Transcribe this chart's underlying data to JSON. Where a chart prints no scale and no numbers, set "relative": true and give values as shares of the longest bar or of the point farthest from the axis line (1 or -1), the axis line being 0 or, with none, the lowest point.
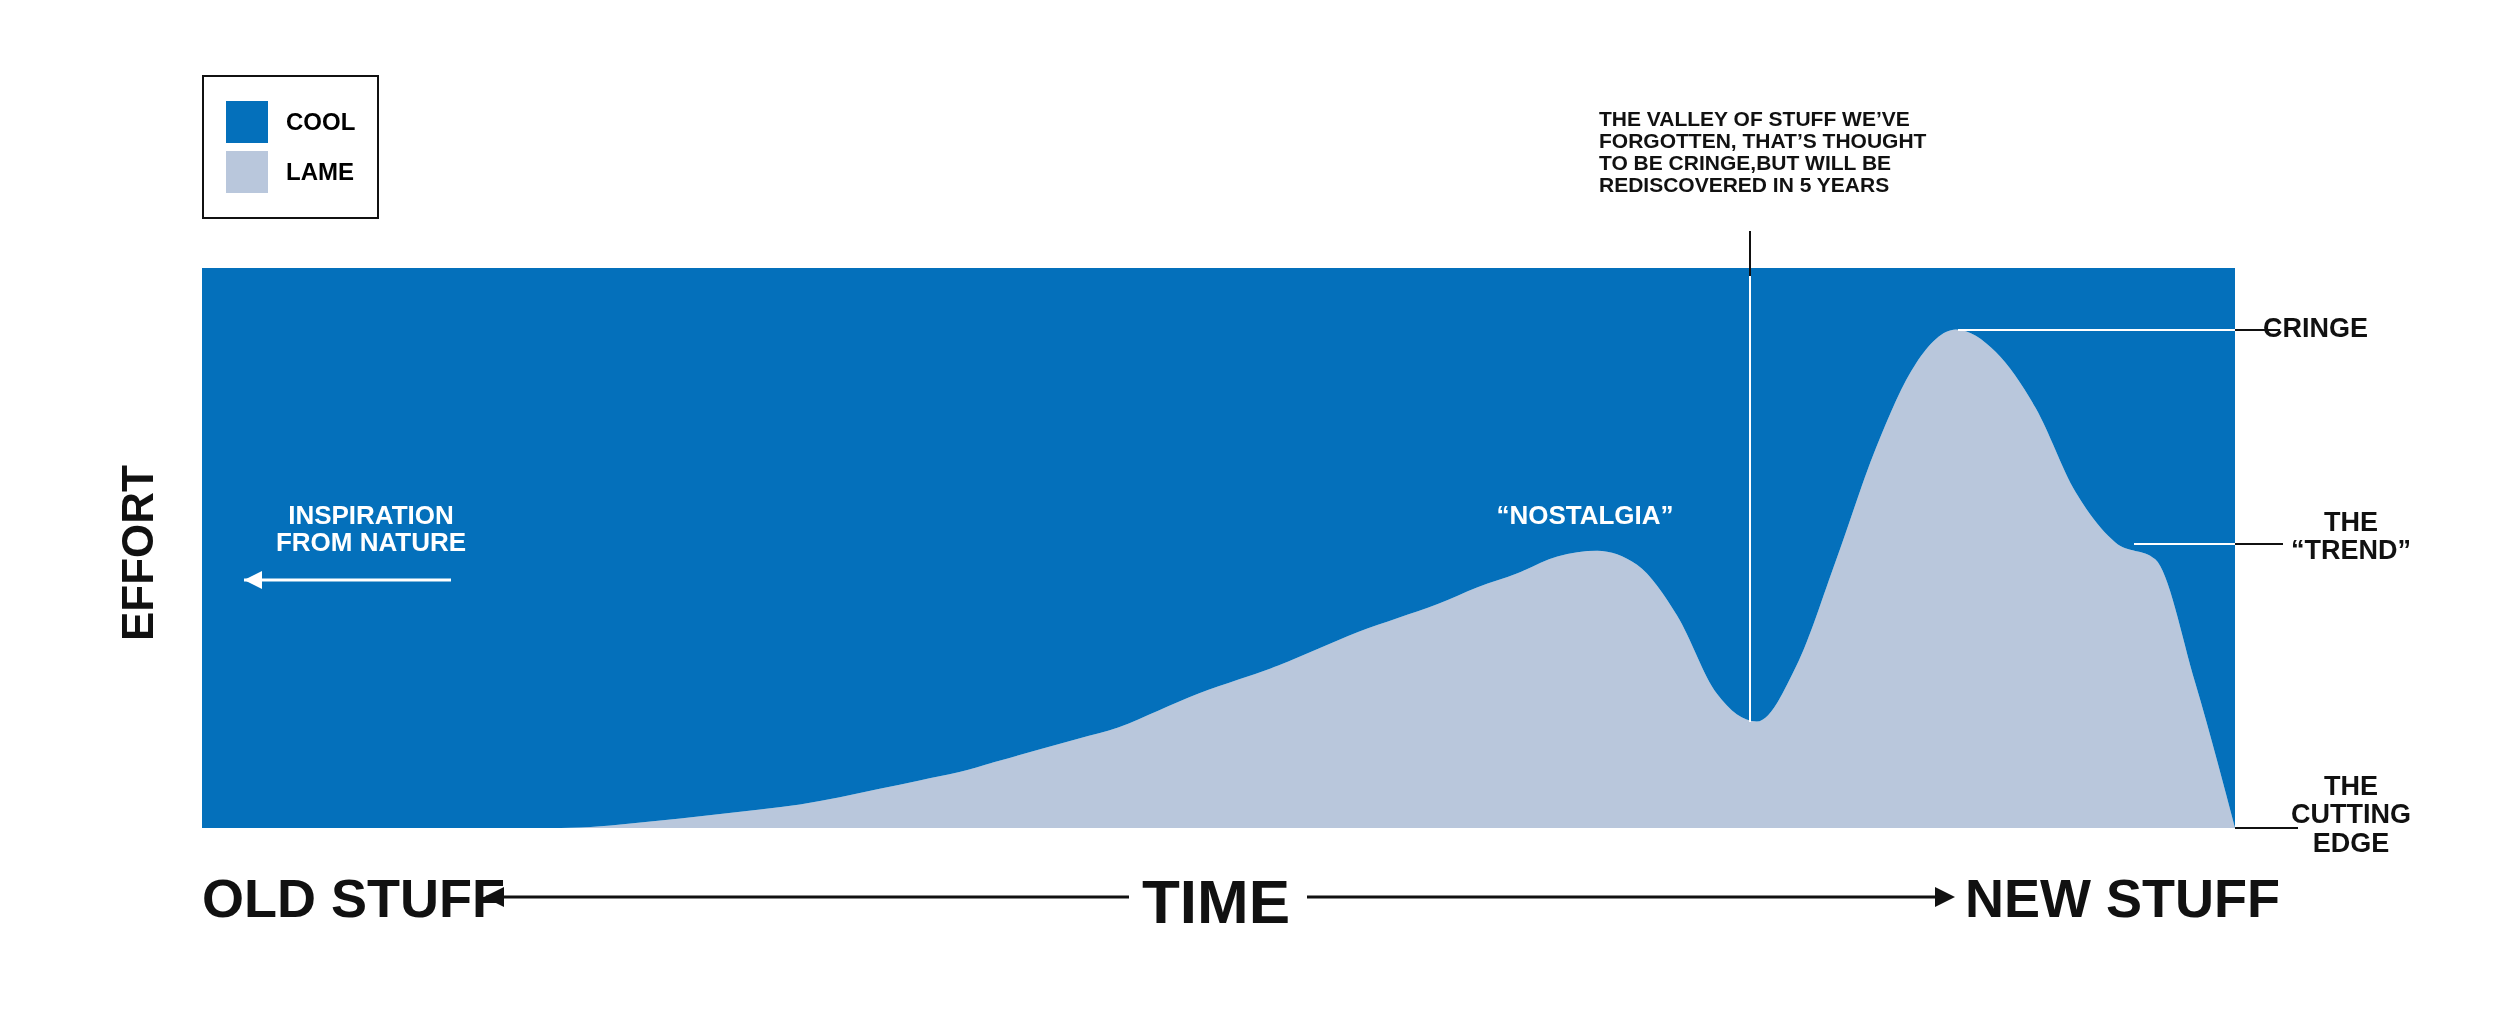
{
  "chart_data": {
    "type": "area",
    "relative": true,
    "stacked": true,
    "legend": "top left",
    "xlabel": "TIME",
    "ylabel": "EFFORT",
    "categories": [
      null,
      null,
      null,
      null,
      null,
      null,
      null,
      null,
      null,
      null,
      null,
      null,
      null,
      null,
      null,
      null,
      null,
      null,
      null,
      null,
      null,
      null,
      null,
      null,
      null,
      null,
      null,
      null,
      null,
      null,
      null,
      null,
      null,
      null,
      null,
      null,
      null,
      null,
      null,
      null,
      null,
      null,
      null,
      null,
      null,
      null,
      null,
      null,
      null,
      null,
      null,
      null
    ],
    "series": [
      {
        "name": "LAME",
        "color": "#b9c7dc",
        "values": [
          0,
          0,
          0,
          0,
          0,
          0,
          0,
          0,
          0,
          0,
          0.003,
          0.01,
          0.017,
          0.025,
          0.033,
          0.042,
          0.055,
          0.07,
          0.085,
          0.1,
          0.12,
          0.14,
          0.16,
          0.18,
          0.21,
          0.24,
          0.265,
          0.29,
          0.32,
          0.35,
          0.375,
          0.4,
          0.43,
          0.455,
          0.485,
          0.495,
          0.47,
          0.38,
          0.24,
          0.19,
          0.29,
          0.48,
          0.68,
          0.83,
          0.89,
          0.85,
          0.75,
          0.6,
          0.51,
          0.48,
          0.26,
          0
        ]
      },
      {
        "name": "COOL",
        "color": "#0470bb",
        "values": [
          1,
          1,
          1,
          1,
          1,
          1,
          1,
          1,
          1,
          1,
          0.997,
          0.99,
          0.983,
          0.975,
          0.967,
          0.958,
          0.945,
          0.93,
          0.915,
          0.9,
          0.88,
          0.86,
          0.84,
          0.82,
          0.79,
          0.76,
          0.735,
          0.71,
          0.68,
          0.65,
          0.625,
          0.6,
          0.57,
          0.545,
          0.515,
          0.505,
          0.53,
          0.62,
          0.76,
          0.81,
          0.71,
          0.52,
          0.32,
          0.17,
          0.11,
          0.15,
          0.25,
          0.4,
          0.49,
          0.52,
          0.74,
          1
        ]
      }
    ],
    "annotations": [
      "THE VALLEY OF STUFF WE’VE FORGOTTEN, THAT’S THOUGHT TO BE CRINGE,BUT WILL BE REDISCOVERED IN 5 YEARS",
      "“NOSTALGIA”",
      "INSPIRATION FROM NATURE",
      "CRINGE",
      "THE “TREND”",
      "THE CUTTING EDGE",
      "OLD STUFF",
      "NEW STUFF"
    ]
  }
}
